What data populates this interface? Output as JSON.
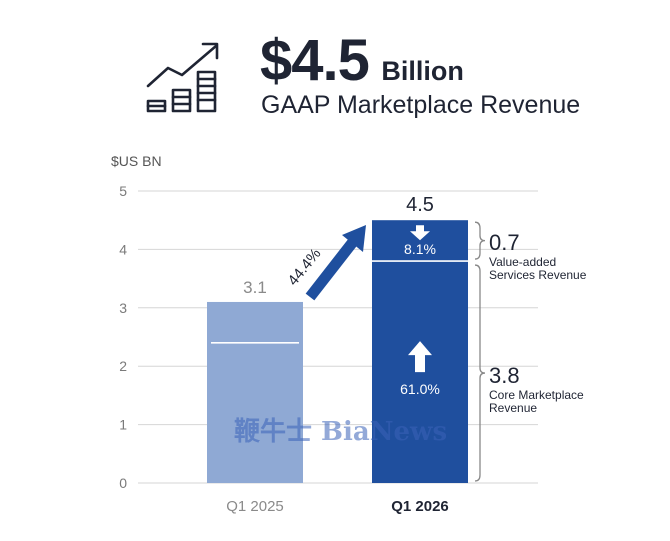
{
  "header": {
    "icon": "growth-chart-icon",
    "headline_value": "$4.5",
    "headline_unit": "Billion",
    "subtitle": "GAAP Marketplace Revenue"
  },
  "chart_data": {
    "type": "bar",
    "ylabel": "$US BN",
    "ylim": [
      0,
      5
    ],
    "yticks": [
      0,
      1,
      2,
      3,
      4,
      5
    ],
    "categories": [
      "Q1 2025",
      "Q1 2026"
    ],
    "series": [
      {
        "name": "Core Marketplace Revenue",
        "values": [
          2.4,
          3.8
        ]
      },
      {
        "name": "Value-added Services Revenue",
        "values": [
          0.7,
          0.7
        ]
      }
    ],
    "totals": [
      3.1,
      4.5
    ],
    "total_labels": [
      "3.1",
      "4.5"
    ],
    "growth_label": "44.4%",
    "segment_growth": {
      "value_added": "8.1%",
      "core": "61.0%"
    },
    "callouts": {
      "value_added": {
        "value": "0.7",
        "line1": "Value-added",
        "line2": "Services Revenue"
      },
      "core": {
        "value": "3.8",
        "line1": "Core Marketplace",
        "line2": "Revenue"
      }
    },
    "colors": {
      "bar_2025": "#8fa9d4",
      "bar_2026": "#1f4f9e",
      "arrow": "#1f4f9e",
      "grid": "#d6d6d6",
      "axis_text": "#7a7a7a"
    },
    "grid": true
  },
  "watermark": "鞭牛士 BiaNews"
}
